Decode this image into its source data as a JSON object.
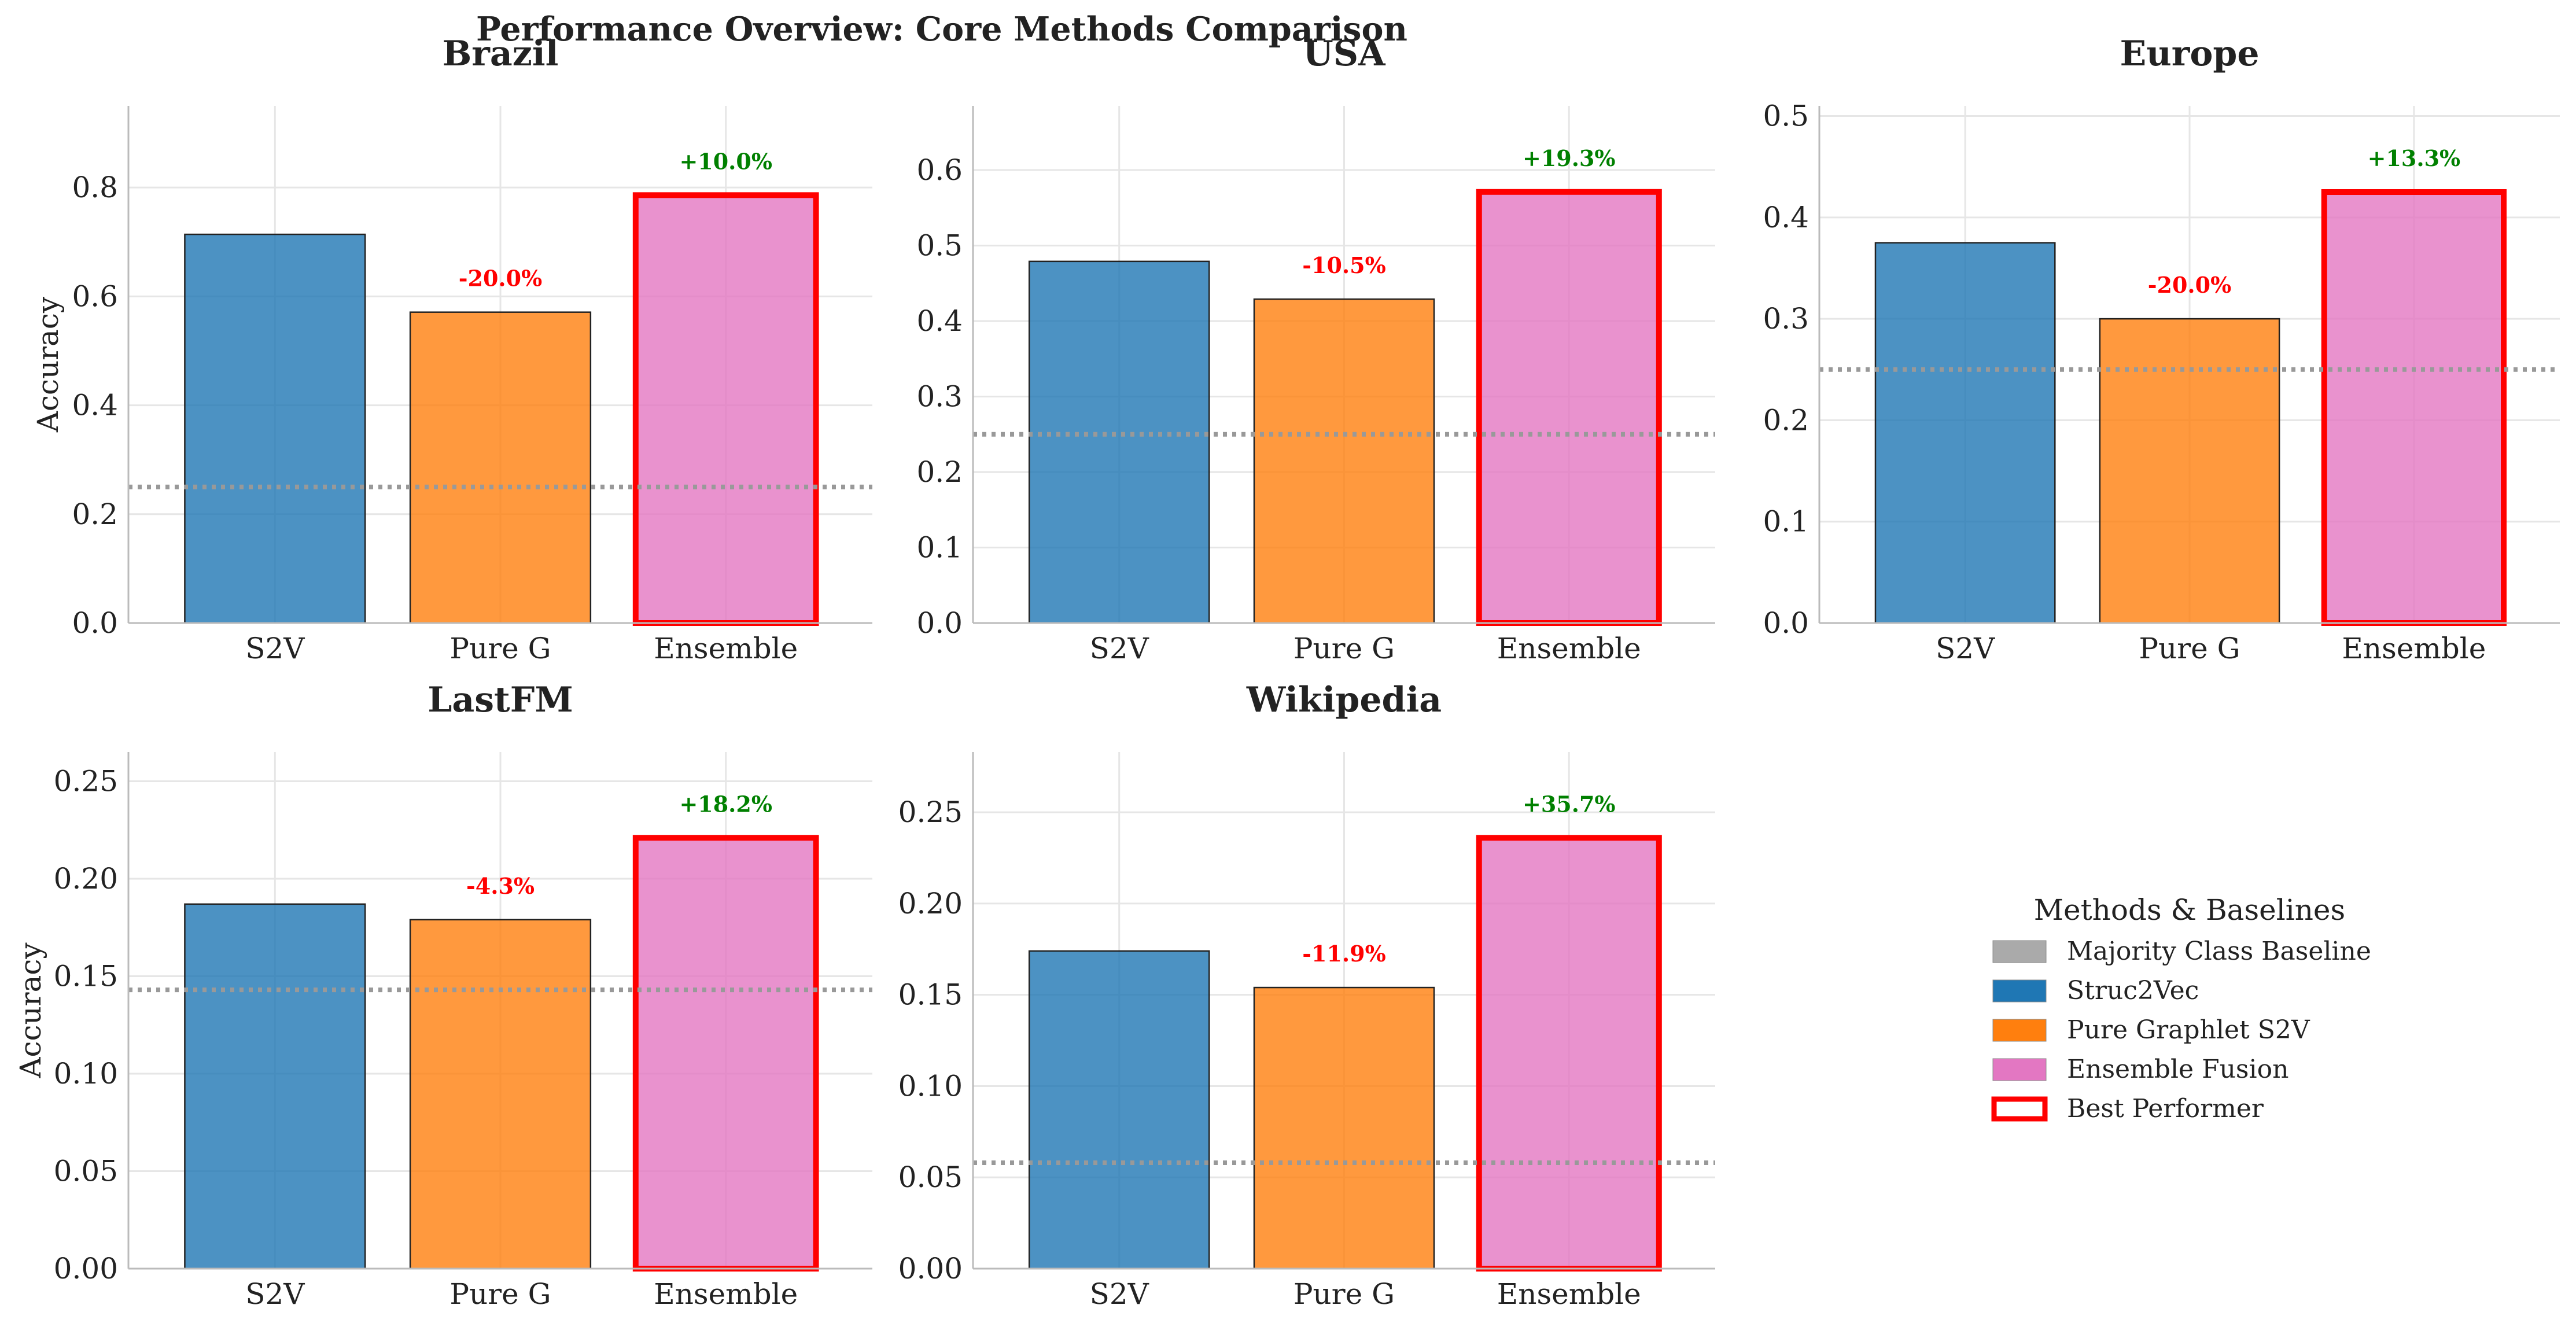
{
  "title": "Performance Overview: Core Methods Comparison",
  "colors": {
    "s2v": "#1f77b4",
    "pure_g": "#ff7f0e",
    "ensemble": "#e377c2",
    "best_border": "#ff0000",
    "baseline": "#999999",
    "positive": "#008000",
    "negative": "#ff0000"
  },
  "legend": {
    "title": "Methods & Baselines",
    "items": [
      {
        "label": "Majority Class Baseline",
        "color": "#aaaaaa",
        "style": "fill"
      },
      {
        "label": "Struc2Vec",
        "color": "#1f77b4",
        "style": "fill"
      },
      {
        "label": "Pure Graphlet S2V",
        "color": "#ff7f0e",
        "style": "fill"
      },
      {
        "label": "Ensemble Fusion",
        "color": "#e377c2",
        "style": "fill"
      },
      {
        "label": "Best Performer",
        "color": "#ff0000",
        "style": "outline"
      }
    ]
  },
  "chart_data": [
    {
      "type": "bar",
      "title": "Brazil",
      "ylabel": "Accuracy",
      "categories": [
        "S2V",
        "Pure G",
        "Ensemble"
      ],
      "values": [
        0.714,
        0.571,
        0.786
      ],
      "baseline": 0.25,
      "ylim": [
        0,
        0.95
      ],
      "yticks": [
        0.0,
        0.2,
        0.4,
        0.6,
        0.8
      ],
      "tick_labels": [
        "0.0",
        "0.2",
        "0.4",
        "0.6",
        "0.8"
      ],
      "differences": [
        "",
        "-20.0%",
        "+10.0%"
      ],
      "best_index": 2,
      "grid": true
    },
    {
      "type": "bar",
      "title": "USA",
      "ylabel": "",
      "categories": [
        "S2V",
        "Pure G",
        "Ensemble"
      ],
      "values": [
        0.479,
        0.429,
        0.571
      ],
      "baseline": 0.25,
      "ylim": [
        0,
        0.685
      ],
      "yticks": [
        0.0,
        0.1,
        0.2,
        0.3,
        0.4,
        0.5,
        0.6
      ],
      "tick_labels": [
        "0.0",
        "0.1",
        "0.2",
        "0.3",
        "0.4",
        "0.5",
        "0.6"
      ],
      "differences": [
        "",
        "-10.5%",
        "+19.3%"
      ],
      "best_index": 2,
      "grid": true
    },
    {
      "type": "bar",
      "title": "Europe",
      "ylabel": "",
      "categories": [
        "S2V",
        "Pure G",
        "Ensemble"
      ],
      "values": [
        0.375,
        0.3,
        0.425
      ],
      "baseline": 0.25,
      "ylim": [
        0,
        0.51
      ],
      "yticks": [
        0.0,
        0.1,
        0.2,
        0.3,
        0.4,
        0.5
      ],
      "tick_labels": [
        "0.0",
        "0.1",
        "0.2",
        "0.3",
        "0.4",
        "0.5"
      ],
      "differences": [
        "",
        "-20.0%",
        "+13.3%"
      ],
      "best_index": 2,
      "grid": true
    },
    {
      "type": "bar",
      "title": "LastFM",
      "ylabel": "Accuracy",
      "categories": [
        "S2V",
        "Pure G",
        "Ensemble"
      ],
      "values": [
        0.187,
        0.179,
        0.221
      ],
      "baseline": 0.143,
      "ylim": [
        0,
        0.265
      ],
      "yticks": [
        0.0,
        0.05,
        0.1,
        0.15,
        0.2,
        0.25
      ],
      "tick_labels": [
        "0.00",
        "0.05",
        "0.10",
        "0.15",
        "0.20",
        "0.25"
      ],
      "differences": [
        "",
        "-4.3%",
        "+18.2%"
      ],
      "best_index": 2,
      "grid": true
    },
    {
      "type": "bar",
      "title": "Wikipedia",
      "ylabel": "",
      "categories": [
        "S2V",
        "Pure G",
        "Ensemble"
      ],
      "values": [
        0.174,
        0.154,
        0.236
      ],
      "baseline": 0.058,
      "ylim": [
        0,
        0.283
      ],
      "yticks": [
        0.0,
        0.05,
        0.1,
        0.15,
        0.2,
        0.25
      ],
      "tick_labels": [
        "0.00",
        "0.05",
        "0.10",
        "0.15",
        "0.20",
        "0.25"
      ],
      "differences": [
        "",
        "-11.9%",
        "+35.7%"
      ],
      "best_index": 2,
      "grid": true
    }
  ]
}
